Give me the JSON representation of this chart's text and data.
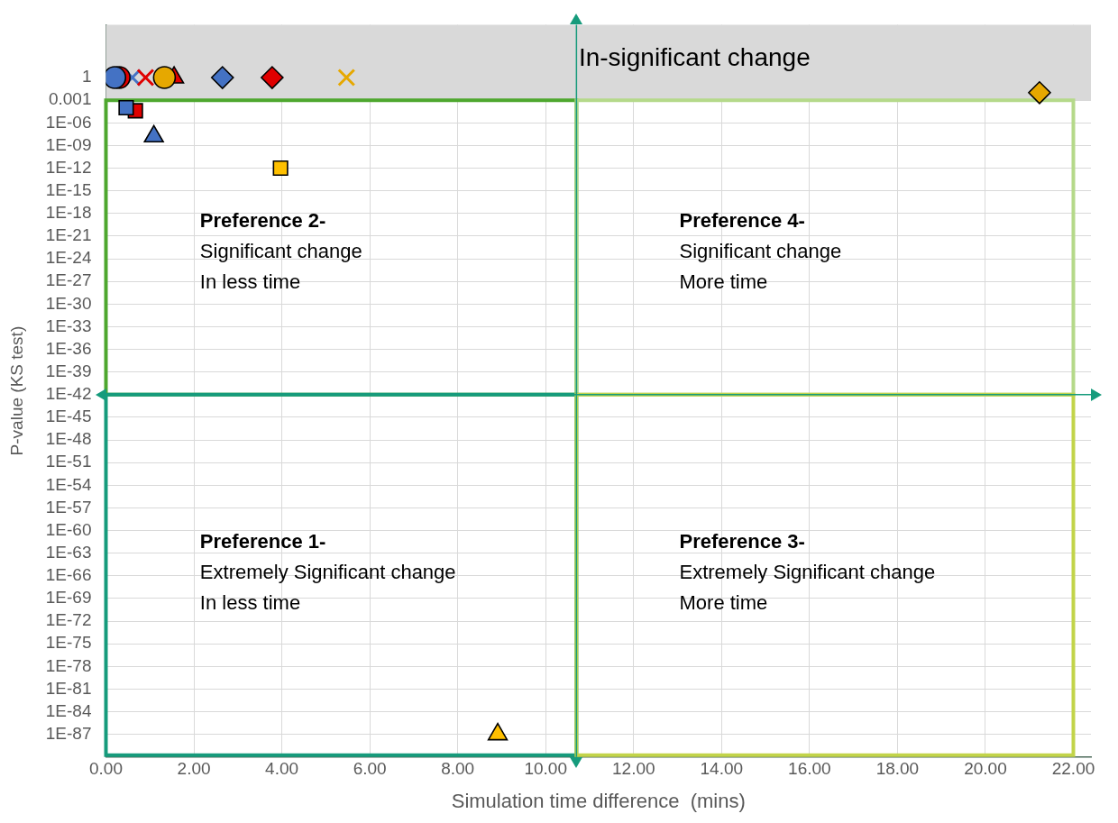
{
  "chart_data": {
    "type": "scatter",
    "xlabel": "Simulation time difference  (mins)",
    "ylabel": "P-value (KS test)",
    "xlim": [
      0,
      22.4
    ],
    "ylim": [
      1e-90,
      10000000.0
    ],
    "log": "y",
    "grid": true,
    "legend": false,
    "xticks": [
      {
        "value": 0,
        "label": "0.00"
      },
      {
        "value": 2,
        "label": "2.00"
      },
      {
        "value": 4,
        "label": "4.00"
      },
      {
        "value": 6,
        "label": "6.00"
      },
      {
        "value": 8,
        "label": "8.00"
      },
      {
        "value": 10,
        "label": "10.00"
      },
      {
        "value": 12,
        "label": "12.00"
      },
      {
        "value": 14,
        "label": "14.00"
      },
      {
        "value": 16,
        "label": "16.00"
      },
      {
        "value": 18,
        "label": "18.00"
      },
      {
        "value": 20,
        "label": "20.00"
      },
      {
        "value": 22,
        "label": "22.00"
      }
    ],
    "yticks": [
      1,
      0.001,
      {
        "value": 1e-06,
        "label": "1E-06"
      },
      {
        "value": 1e-09,
        "label": "1E-09"
      },
      {
        "value": 1e-12,
        "label": "1E-12"
      },
      {
        "value": 1e-15,
        "label": "1E-15"
      },
      {
        "value": 1e-18,
        "label": "1E-18"
      },
      {
        "value": 1e-21,
        "label": "1E-21"
      },
      {
        "value": 1e-24,
        "label": "1E-24"
      },
      {
        "value": 1e-27,
        "label": "1E-27"
      },
      {
        "value": 1e-30,
        "label": "1E-30"
      },
      {
        "value": 1e-33,
        "label": "1E-33"
      },
      {
        "value": 1e-36,
        "label": "1E-36"
      },
      {
        "value": 1e-39,
        "label": "1E-39"
      },
      {
        "value": 1e-42,
        "label": "1E-42"
      },
      {
        "value": 1e-45,
        "label": "1E-45"
      },
      {
        "value": 1e-48,
        "label": "1E-48"
      },
      {
        "value": 1e-51,
        "label": "1E-51"
      },
      {
        "value": 1e-54,
        "label": "1E-54"
      },
      {
        "value": 1e-57,
        "label": "1E-57"
      },
      {
        "value": 1e-60,
        "label": "1E-60"
      },
      {
        "value": 1e-63,
        "label": "1E-63"
      },
      {
        "value": 1e-66,
        "label": "1E-66"
      },
      {
        "value": 1e-69,
        "label": "1E-69"
      },
      {
        "value": 1e-72,
        "label": "1E-72"
      },
      {
        "value": 1e-75,
        "label": "1E-75"
      },
      {
        "value": 1e-78,
        "label": "1E-78"
      },
      {
        "value": 1e-81,
        "label": "1E-81"
      },
      {
        "value": 1e-84,
        "label": "1E-84"
      },
      {
        "value": 1e-87,
        "label": "1E-87"
      }
    ],
    "series": [
      {
        "marker": "circle",
        "x": [
          0.3,
          0.2,
          1.33
        ],
        "values": [
          1,
          1,
          1
        ],
        "colors": [
          "#e00000",
          "#4472c4",
          "#e6a800"
        ]
      },
      {
        "marker": "cross",
        "x": [
          0.6,
          0.9,
          5.47
        ],
        "values": [
          1,
          1,
          1
        ],
        "colors": [
          "#4472c4",
          "#e00000",
          "#e6a800"
        ]
      },
      {
        "marker": "triangle",
        "x": [
          1.55,
          1.09,
          8.91
        ],
        "values": [
          1,
          1.6e-08,
          1e-87
        ],
        "colors": [
          "#e00000",
          "#4472c4",
          "#ffc000"
        ]
      },
      {
        "marker": "square",
        "x": [
          0.67,
          0.46,
          3.97
        ],
        "values": [
          4e-05,
          0.0001,
          1e-12
        ],
        "colors": [
          "#e00000",
          "#4472c4",
          "#ffc000"
        ]
      },
      {
        "marker": "diamond",
        "x": [
          2.65,
          3.78,
          21.23
        ],
        "values": [
          1,
          1,
          0.01
        ],
        "colors": [
          "#4472c4",
          "#e00000",
          "#e6a800"
        ]
      }
    ],
    "bands": [
      {
        "axis": "y",
        "from": 0.001,
        "to": 10000000.0,
        "label": "In-significant change",
        "color": "#d9d9d9"
      }
    ],
    "ref_lines": [
      {
        "axis": "x",
        "value": 10.7,
        "color": "#169b7c"
      },
      {
        "axis": "y",
        "value": 1e-42,
        "color": "#169b7c"
      }
    ],
    "annotations": [
      "Preference 2-\nSignificant change\nIn less time",
      "Preference 4-\nSignificant change\nMore time",
      "Preference 1-\nExtremely Significant change\nIn less time",
      "Preference 3-\nExtremely Significant change\nMore time"
    ]
  }
}
